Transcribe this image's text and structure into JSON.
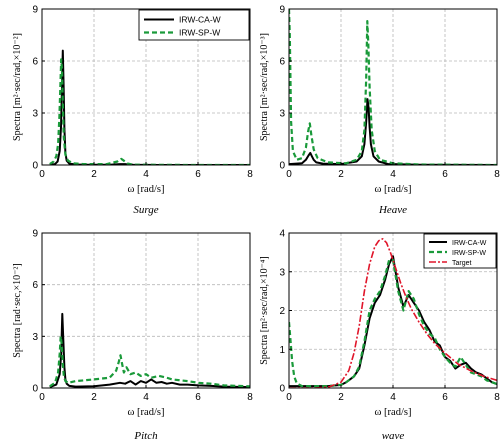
{
  "colors": {
    "ca": "#000000",
    "sp": "#1a9a3a",
    "target": "#e0152a",
    "grid": "#b8b8b8"
  },
  "chart_data": [
    {
      "type": "line",
      "caption": "Surge",
      "xlabel": "ω [rad/s]",
      "ylabel": "Spectra [m²·sec/rad,×10⁻²]",
      "xlim": [
        0,
        8
      ],
      "ylim": [
        0,
        9
      ],
      "xticks": [
        0,
        2,
        4,
        6,
        8
      ],
      "yticks": [
        0,
        3,
        6,
        9
      ],
      "grid": true,
      "legend": "top-right",
      "series": [
        {
          "name": "IRW-CA-W",
          "key": "ca",
          "x": [
            0.3,
            0.5,
            0.6,
            0.68,
            0.73,
            0.77,
            0.8,
            0.83,
            0.86,
            0.9,
            0.95,
            1.05,
            1.3,
            1.8,
            2.6,
            3.0,
            3.2,
            3.5,
            4.5,
            6.0,
            8.0
          ],
          "y": [
            0.02,
            0.05,
            0.2,
            0.8,
            2.2,
            4.5,
            6.6,
            4.6,
            2.1,
            0.7,
            0.25,
            0.08,
            0.03,
            0.01,
            0.01,
            0.05,
            0.05,
            0.01,
            0.0,
            0.0,
            0.0
          ]
        },
        {
          "name": "IRW-SP-W",
          "key": "sp",
          "x": [
            0.3,
            0.45,
            0.55,
            0.62,
            0.67,
            0.71,
            0.74,
            0.77,
            0.8,
            0.84,
            0.9,
            1.0,
            1.2,
            1.6,
            2.5,
            2.9,
            3.05,
            3.15,
            3.3,
            3.5,
            4.5,
            6.0,
            8.0
          ],
          "y": [
            0.05,
            0.2,
            0.5,
            1.2,
            2.8,
            4.8,
            6.1,
            5.5,
            3.5,
            1.6,
            0.6,
            0.25,
            0.1,
            0.05,
            0.05,
            0.2,
            0.35,
            0.25,
            0.08,
            0.02,
            0.01,
            0.0,
            0.0
          ]
        }
      ]
    },
    {
      "type": "line",
      "caption": "Heave",
      "xlabel": "ω [rad/s]",
      "ylabel": "Spectra [m²·sec/rad,×10⁻³]",
      "xlim": [
        0,
        8
      ],
      "ylim": [
        0,
        9
      ],
      "xticks": [
        0,
        2,
        4,
        6,
        8
      ],
      "yticks": [
        0,
        3,
        6,
        9
      ],
      "grid": true,
      "legend": "none",
      "series": [
        {
          "name": "IRW-CA-W",
          "key": "ca",
          "x": [
            0.0,
            0.5,
            0.65,
            0.75,
            0.82,
            0.88,
            0.95,
            1.05,
            1.3,
            2.0,
            2.6,
            2.8,
            2.9,
            2.97,
            3.02,
            3.06,
            3.1,
            3.15,
            3.25,
            3.45,
            3.8,
            5.0,
            8.0
          ],
          "y": [
            0.05,
            0.1,
            0.3,
            0.55,
            0.7,
            0.5,
            0.3,
            0.15,
            0.08,
            0.05,
            0.2,
            0.5,
            1.2,
            2.5,
            3.8,
            3.3,
            2.2,
            1.2,
            0.5,
            0.2,
            0.06,
            0.02,
            0.0
          ]
        },
        {
          "name": "IRW-SP-W",
          "key": "sp",
          "x": [
            0.0,
            0.03,
            0.08,
            0.15,
            0.3,
            0.5,
            0.65,
            0.73,
            0.8,
            0.86,
            0.95,
            1.1,
            1.5,
            2.2,
            2.6,
            2.8,
            2.9,
            2.97,
            3.01,
            3.05,
            3.1,
            3.18,
            3.3,
            3.5,
            4.0,
            5.0,
            8.0
          ],
          "y": [
            9.0,
            7.5,
            2.5,
            0.8,
            0.3,
            0.4,
            1.0,
            1.9,
            2.4,
            1.7,
            0.9,
            0.4,
            0.15,
            0.1,
            0.3,
            0.8,
            2.0,
            5.0,
            8.3,
            7.0,
            4.5,
            2.0,
            0.8,
            0.3,
            0.1,
            0.03,
            0.0
          ]
        }
      ]
    },
    {
      "type": "line",
      "caption": "Pitch",
      "xlabel": "ω [rad/s]",
      "ylabel": "Spectra [rad·sec,×10⁻²]",
      "xlim": [
        0,
        8
      ],
      "ylim": [
        0,
        9
      ],
      "xticks": [
        0,
        2,
        4,
        6,
        8
      ],
      "yticks": [
        0,
        3,
        6,
        9
      ],
      "grid": true,
      "legend": "none",
      "series": [
        {
          "name": "IRW-CA-W",
          "key": "ca",
          "x": [
            0.3,
            0.55,
            0.68,
            0.74,
            0.78,
            0.82,
            0.86,
            0.9,
            0.95,
            1.05,
            1.3,
            2.0,
            2.6,
            3.0,
            3.2,
            3.4,
            3.6,
            3.8,
            4.0,
            4.2,
            4.4,
            4.6,
            4.8,
            5.0,
            5.3,
            5.6,
            6.0,
            6.5,
            7.0,
            8.0
          ],
          "y": [
            0.05,
            0.2,
            0.8,
            2.0,
            4.3,
            2.8,
            1.2,
            0.5,
            0.25,
            0.12,
            0.08,
            0.1,
            0.2,
            0.3,
            0.25,
            0.4,
            0.2,
            0.4,
            0.3,
            0.5,
            0.3,
            0.35,
            0.25,
            0.3,
            0.2,
            0.2,
            0.15,
            0.12,
            0.08,
            0.05
          ]
        },
        {
          "name": "IRW-SP-W",
          "key": "sp",
          "x": [
            0.3,
            0.5,
            0.62,
            0.68,
            0.72,
            0.76,
            0.8,
            0.84,
            0.9,
            1.0,
            1.3,
            2.0,
            2.6,
            2.85,
            2.95,
            3.02,
            3.08,
            3.15,
            3.25,
            3.4,
            3.6,
            3.8,
            4.0,
            4.2,
            4.5,
            4.8,
            5.0,
            5.3,
            5.6,
            6.0,
            6.5,
            7.0,
            8.0
          ],
          "y": [
            0.1,
            0.3,
            0.9,
            2.0,
            3.0,
            2.5,
            1.4,
            0.7,
            0.4,
            0.3,
            0.4,
            0.5,
            0.6,
            1.0,
            1.5,
            1.9,
            1.4,
            0.9,
            1.2,
            0.8,
            0.9,
            0.7,
            0.8,
            0.6,
            0.7,
            0.6,
            0.5,
            0.45,
            0.4,
            0.3,
            0.25,
            0.15,
            0.1
          ]
        }
      ]
    },
    {
      "type": "line",
      "caption": "wave",
      "xlabel": "ω [rad/s]",
      "ylabel": "Spectra [m²·sec/rad,×10⁻⁴]",
      "xlim": [
        0,
        8
      ],
      "ylim": [
        0,
        4
      ],
      "xticks": [
        0,
        2,
        4,
        6,
        8
      ],
      "yticks": [
        0,
        1,
        2,
        3,
        4
      ],
      "grid": true,
      "legend": "top-right",
      "series": [
        {
          "name": "IRW-CA-W",
          "key": "ca",
          "x": [
            0.0,
            0.5,
            1.0,
            1.5,
            2.0,
            2.2,
            2.5,
            2.7,
            2.9,
            3.1,
            3.3,
            3.5,
            3.7,
            3.85,
            4.0,
            4.2,
            4.4,
            4.6,
            4.8,
            5.0,
            5.2,
            5.4,
            5.6,
            5.8,
            6.0,
            6.2,
            6.4,
            6.6,
            6.8,
            7.0,
            7.2,
            7.4,
            7.6,
            7.8,
            8.0
          ],
          "y": [
            0.05,
            0.05,
            0.05,
            0.05,
            0.08,
            0.15,
            0.3,
            0.5,
            1.1,
            1.8,
            2.2,
            2.4,
            2.8,
            3.2,
            3.4,
            2.6,
            2.1,
            2.4,
            2.2,
            2.0,
            1.7,
            1.5,
            1.2,
            1.1,
            0.8,
            0.7,
            0.5,
            0.6,
            0.65,
            0.5,
            0.4,
            0.35,
            0.25,
            0.15,
            0.1
          ]
        },
        {
          "name": "IRW-SP-W",
          "key": "sp",
          "x": [
            0.0,
            0.05,
            0.12,
            0.2,
            0.3,
            0.5,
            1.0,
            1.5,
            2.0,
            2.2,
            2.5,
            2.7,
            2.9,
            3.1,
            3.3,
            3.5,
            3.7,
            3.85,
            4.0,
            4.2,
            4.4,
            4.6,
            4.8,
            5.0,
            5.2,
            5.4,
            5.6,
            5.8,
            6.0,
            6.2,
            6.4,
            6.6,
            6.8,
            7.0,
            7.2,
            7.4,
            7.6,
            7.8,
            8.0
          ],
          "y": [
            1.7,
            1.3,
            0.7,
            0.3,
            0.12,
            0.05,
            0.05,
            0.05,
            0.08,
            0.15,
            0.3,
            0.55,
            1.2,
            2.0,
            2.3,
            2.5,
            2.9,
            3.3,
            3.3,
            2.5,
            2.0,
            2.5,
            2.3,
            1.9,
            1.6,
            1.4,
            1.3,
            1.0,
            0.8,
            0.65,
            0.55,
            0.8,
            0.6,
            0.4,
            0.35,
            0.3,
            0.2,
            0.15,
            0.1
          ]
        },
        {
          "name": "Target",
          "key": "target",
          "x": [
            0.0,
            0.5,
            1.0,
            1.5,
            2.0,
            2.3,
            2.5,
            2.7,
            2.9,
            3.1,
            3.3,
            3.45,
            3.6,
            3.75,
            3.9,
            4.1,
            4.3,
            4.5,
            4.7,
            5.0,
            5.3,
            5.6,
            6.0,
            6.5,
            7.0,
            7.5,
            8.0
          ],
          "y": [
            0.0,
            0.0,
            0.0,
            0.02,
            0.15,
            0.45,
            0.9,
            1.6,
            2.5,
            3.2,
            3.65,
            3.8,
            3.85,
            3.75,
            3.5,
            3.1,
            2.7,
            2.35,
            2.05,
            1.7,
            1.4,
            1.15,
            0.9,
            0.62,
            0.44,
            0.3,
            0.2
          ]
        }
      ]
    }
  ]
}
